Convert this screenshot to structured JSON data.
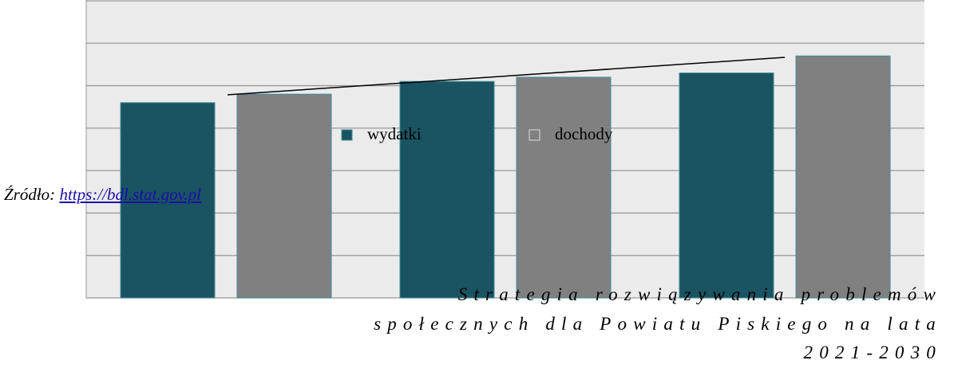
{
  "chart_data": {
    "type": "bar",
    "categories": [
      null,
      null,
      null
    ],
    "series": [
      {
        "name": "wydatki",
        "color": "#1a5361",
        "values": [
          4.6,
          5.1,
          5.3
        ]
      },
      {
        "name": "dochody",
        "color": "#808080",
        "values": [
          4.8,
          5.2,
          5.7
        ]
      }
    ],
    "ylim": [
      0,
      7
    ],
    "yticks": [
      0,
      1,
      2,
      3,
      4,
      5,
      6,
      7
    ],
    "grid": true
  },
  "source": {
    "label": "Źródło:",
    "link": "https://bdl.stat.gov.pl"
  },
  "footer": {
    "lines": [
      "Strategia rozwiązywania problemów",
      "społecznych dla Powiatu Piskiego na lata",
      "2021-2030"
    ]
  }
}
